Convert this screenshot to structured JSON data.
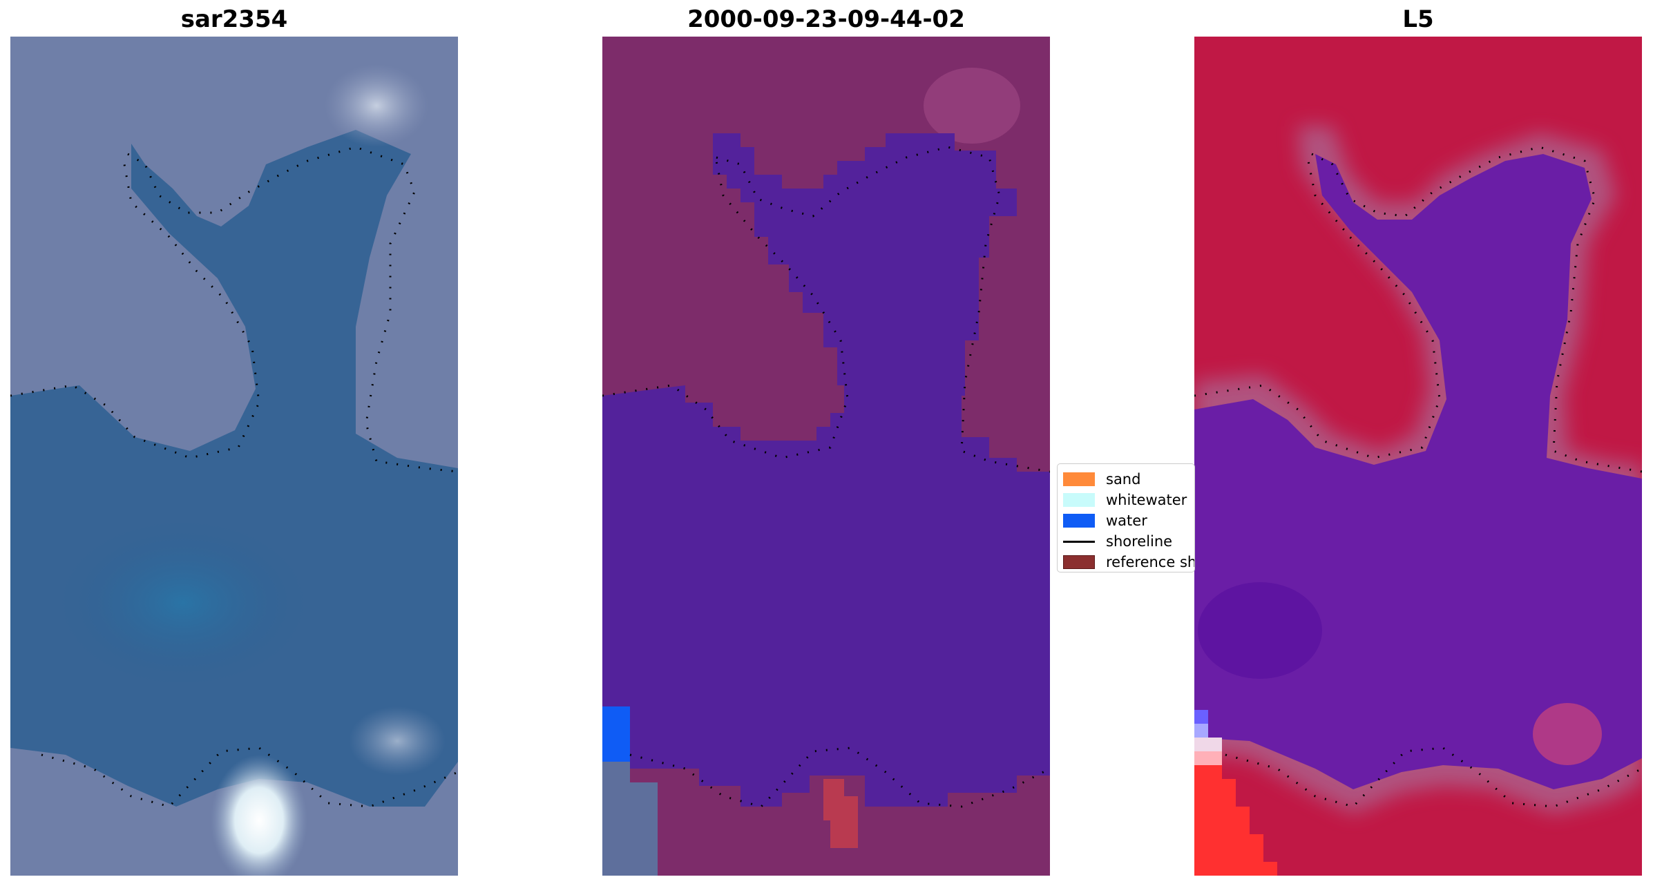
{
  "figure": {
    "panels": [
      {
        "title": "sar2354"
      },
      {
        "title": "2000-09-23-09-44-02"
      },
      {
        "title": "L5"
      }
    ]
  },
  "legend": {
    "items": [
      {
        "label": "sand",
        "color": "#ff8a3a",
        "kind": "patch"
      },
      {
        "label": "whitewater",
        "color": "#c8fbfb",
        "kind": "patch"
      },
      {
        "label": "water",
        "color": "#0f5cf5",
        "kind": "patch"
      },
      {
        "label": "shoreline",
        "color": "#000000",
        "kind": "line"
      },
      {
        "label": "reference shoreline",
        "color": "#8b2f2f",
        "kind": "patch"
      }
    ]
  },
  "colors": {
    "rgb_land": "#6f7fa8",
    "rgb_water": "#2e5f92",
    "classified_land": "#7d2c6a",
    "classified_water": "#53229b",
    "mndwi_land": "#c01845",
    "mndwi_water": "#6a1ea6"
  }
}
